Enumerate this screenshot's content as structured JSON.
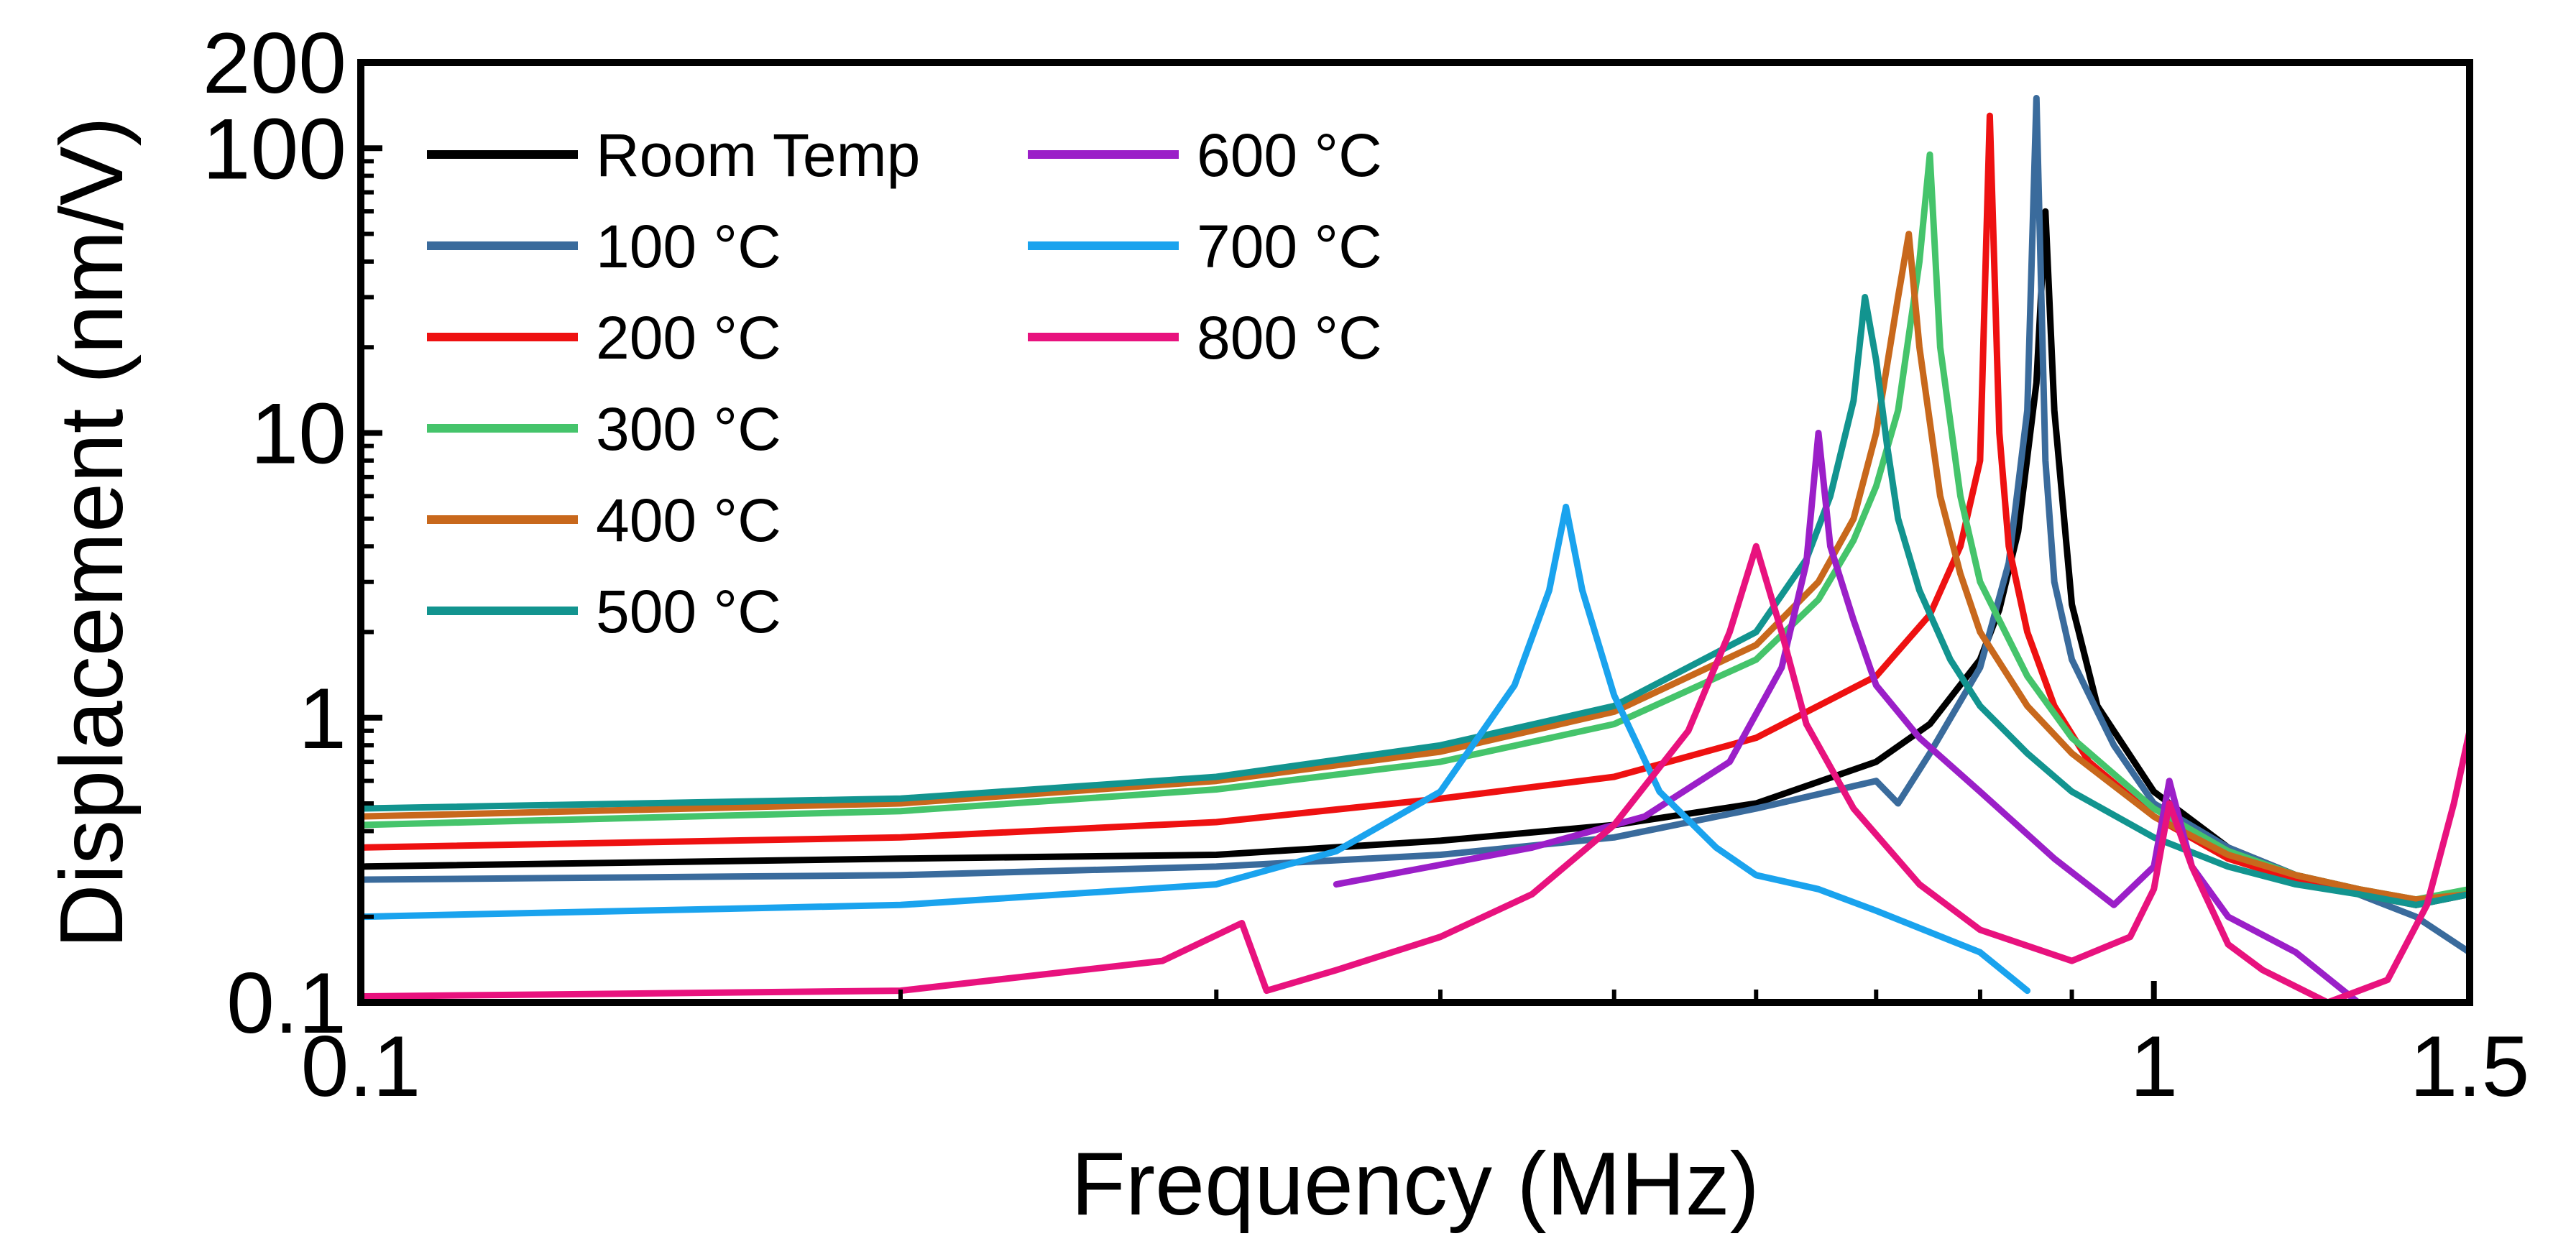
{
  "chart_data": {
    "type": "line",
    "title": "",
    "xlabel": "Frequency (MHz)",
    "ylabel": "Displacement (nm/V)",
    "xscale": "log",
    "yscale": "log",
    "xlim": [
      0.1,
      1.5
    ],
    "ylim": [
      0.1,
      200
    ],
    "x_ticks": [
      {
        "value": 0.1,
        "label": "0.1"
      },
      {
        "value": 1,
        "label": "1"
      },
      {
        "value": 1.5,
        "label": "1.5"
      }
    ],
    "y_ticks": [
      {
        "value": 0.1,
        "label": "0.1"
      },
      {
        "value": 1,
        "label": "1"
      },
      {
        "value": 10,
        "label": "10"
      },
      {
        "value": 100,
        "label": "100"
      },
      {
        "value": 200,
        "label": "200"
      }
    ],
    "grid": false,
    "legend_position": "top-left",
    "series": [
      {
        "name": "Room Temp",
        "color": "#000000",
        "x": [
          0.1,
          0.2,
          0.3,
          0.4,
          0.5,
          0.6,
          0.7,
          0.75,
          0.8,
          0.82,
          0.84,
          0.86,
          0.87,
          0.88,
          0.9,
          0.93,
          1.0,
          1.1,
          1.2,
          1.3,
          1.4,
          1.5
        ],
        "y": [
          0.3,
          0.32,
          0.33,
          0.37,
          0.42,
          0.5,
          0.7,
          0.95,
          1.6,
          2.4,
          4.5,
          15,
          60,
          12,
          2.5,
          1.1,
          0.55,
          0.35,
          0.28,
          0.25,
          0.22,
          0.24
        ]
      },
      {
        "name": "100 °C",
        "color": "#3A6B9C",
        "x": [
          0.1,
          0.2,
          0.3,
          0.4,
          0.5,
          0.6,
          0.7,
          0.72,
          0.75,
          0.8,
          0.83,
          0.85,
          0.86,
          0.87,
          0.88,
          0.9,
          0.95,
          1.0,
          1.1,
          1.2,
          1.3,
          1.4,
          1.5
        ],
        "y": [
          0.27,
          0.28,
          0.3,
          0.33,
          0.38,
          0.48,
          0.6,
          0.5,
          0.75,
          1.5,
          3.5,
          12,
          150,
          8,
          3.0,
          1.6,
          0.8,
          0.5,
          0.35,
          0.28,
          0.24,
          0.2,
          0.15
        ]
      },
      {
        "name": "200 °C",
        "color": "#EE1111",
        "x": [
          0.1,
          0.2,
          0.3,
          0.4,
          0.5,
          0.6,
          0.7,
          0.75,
          0.78,
          0.8,
          0.81,
          0.82,
          0.83,
          0.85,
          0.88,
          0.92,
          1.0,
          1.1,
          1.2,
          1.3,
          1.4,
          1.5
        ],
        "y": [
          0.35,
          0.38,
          0.43,
          0.52,
          0.62,
          0.85,
          1.4,
          2.3,
          4.0,
          8,
          130,
          10,
          4.0,
          2.0,
          1.1,
          0.7,
          0.45,
          0.32,
          0.27,
          0.24,
          0.22,
          0.25
        ]
      },
      {
        "name": "300 °C",
        "color": "#45C46B",
        "x": [
          0.1,
          0.2,
          0.3,
          0.4,
          0.5,
          0.6,
          0.65,
          0.68,
          0.7,
          0.72,
          0.74,
          0.75,
          0.76,
          0.78,
          0.8,
          0.85,
          0.9,
          1.0,
          1.1,
          1.2,
          1.3,
          1.4,
          1.5
        ],
        "y": [
          0.42,
          0.47,
          0.56,
          0.7,
          0.95,
          1.6,
          2.6,
          4.2,
          6.5,
          12,
          40,
          95,
          20,
          6.0,
          3.0,
          1.4,
          0.85,
          0.48,
          0.34,
          0.28,
          0.25,
          0.23,
          0.25
        ]
      },
      {
        "name": "400 °C",
        "color": "#C8681C",
        "x": [
          0.1,
          0.2,
          0.3,
          0.4,
          0.5,
          0.6,
          0.65,
          0.68,
          0.7,
          0.72,
          0.73,
          0.74,
          0.76,
          0.78,
          0.8,
          0.85,
          0.9,
          1.0,
          1.1,
          1.2,
          1.3,
          1.4,
          1.5
        ],
        "y": [
          0.45,
          0.5,
          0.6,
          0.76,
          1.05,
          1.8,
          3.0,
          5.0,
          10,
          30,
          50,
          20,
          6.0,
          3.2,
          2.0,
          1.1,
          0.75,
          0.45,
          0.33,
          0.28,
          0.25,
          0.23,
          0.24
        ]
      },
      {
        "name": "500 °C",
        "color": "#12948F",
        "x": [
          0.1,
          0.2,
          0.3,
          0.4,
          0.5,
          0.6,
          0.64,
          0.66,
          0.68,
          0.69,
          0.7,
          0.71,
          0.72,
          0.74,
          0.77,
          0.8,
          0.85,
          0.9,
          1.0,
          1.1,
          1.2,
          1.3,
          1.4,
          1.5
        ],
        "y": [
          0.48,
          0.52,
          0.62,
          0.8,
          1.1,
          2.0,
          3.6,
          6.0,
          13,
          30,
          18,
          9.0,
          5.0,
          2.8,
          1.6,
          1.1,
          0.75,
          0.55,
          0.38,
          0.3,
          0.26,
          0.24,
          0.22,
          0.24
        ]
      },
      {
        "name": "600 °C",
        "color": "#9B1FC8",
        "x": [
          0.35,
          0.45,
          0.52,
          0.58,
          0.62,
          0.64,
          0.65,
          0.66,
          0.68,
          0.7,
          0.74,
          0.8,
          0.88,
          0.95,
          1.0,
          1.02,
          1.05,
          1.1,
          1.2,
          1.3
        ],
        "y": [
          0.26,
          0.35,
          0.45,
          0.7,
          1.5,
          3.5,
          10,
          4.0,
          2.2,
          1.3,
          0.85,
          0.55,
          0.32,
          0.22,
          0.3,
          0.6,
          0.3,
          0.2,
          0.15,
          0.1
        ]
      },
      {
        "name": "700 °C",
        "color": "#1AA3EE",
        "x": [
          0.1,
          0.2,
          0.3,
          0.35,
          0.4,
          0.44,
          0.46,
          0.47,
          0.48,
          0.5,
          0.53,
          0.57,
          0.6,
          0.65,
          0.7,
          0.8,
          0.85
        ],
        "y": [
          0.2,
          0.22,
          0.26,
          0.34,
          0.55,
          1.3,
          2.8,
          5.5,
          2.8,
          1.2,
          0.55,
          0.35,
          0.28,
          0.25,
          0.21,
          0.15,
          0.11
        ]
      },
      {
        "name": "800 °C",
        "color": "#E8127E",
        "x": [
          0.1,
          0.2,
          0.28,
          0.31,
          0.32,
          0.35,
          0.4,
          0.45,
          0.5,
          0.55,
          0.58,
          0.6,
          0.62,
          0.64,
          0.68,
          0.74,
          0.8,
          0.9,
          0.97,
          1.0,
          1.02,
          1.05,
          1.1,
          1.15,
          1.25,
          1.35,
          1.42,
          1.47,
          1.5
        ],
        "y": [
          0.105,
          0.11,
          0.14,
          0.19,
          0.11,
          0.13,
          0.17,
          0.24,
          0.42,
          0.9,
          2.0,
          4.0,
          2.0,
          0.95,
          0.48,
          0.26,
          0.18,
          0.14,
          0.17,
          0.25,
          0.5,
          0.3,
          0.16,
          0.13,
          0.1,
          0.12,
          0.22,
          0.5,
          0.9
        ]
      }
    ]
  }
}
